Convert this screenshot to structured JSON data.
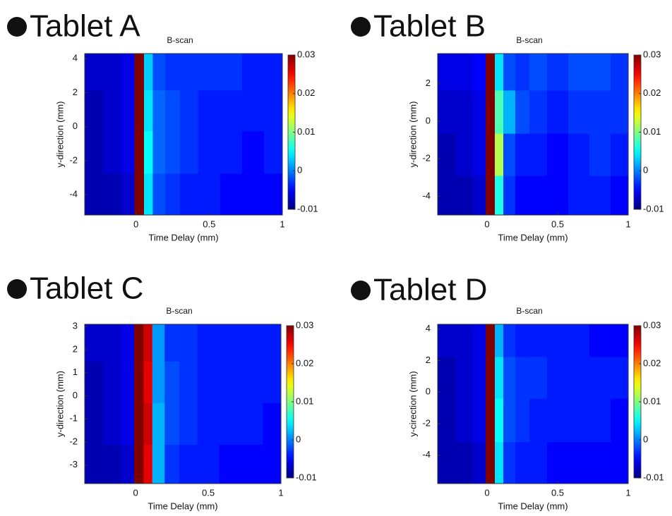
{
  "chart_data": [
    {
      "type": "heatmap",
      "label": "Tablet A",
      "title": "B-scan",
      "xlabel": "Time Delay (mm)",
      "ylabel": "y-direction (mm)",
      "xlim": [
        -0.35,
        1
      ],
      "xticks": [
        0,
        0.5,
        1
      ],
      "ylim": [
        -5.2,
        4.3
      ],
      "yticks": [
        -4,
        -2,
        0,
        2,
        4
      ],
      "x": [
        -0.3,
        -0.15,
        -0.05,
        0.03,
        0.08,
        0.15,
        0.25,
        0.35,
        0.5,
        0.65,
        0.8,
        0.95
      ],
      "y": [
        -4,
        -1.5,
        1,
        3.3
      ],
      "z": [
        [
          -0.008,
          -0.008,
          -0.007,
          0.03,
          0.004,
          -0.002,
          -0.003,
          -0.004,
          -0.004,
          -0.005,
          -0.005,
          -0.005
        ],
        [
          -0.008,
          -0.007,
          -0.006,
          0.03,
          0.005,
          -0.001,
          -0.002,
          -0.003,
          -0.004,
          -0.004,
          -0.005,
          -0.004
        ],
        [
          -0.008,
          -0.007,
          -0.006,
          0.03,
          0.004,
          -0.001,
          -0.002,
          -0.003,
          -0.004,
          -0.004,
          -0.004,
          -0.004
        ],
        [
          -0.007,
          -0.007,
          -0.006,
          0.03,
          0.003,
          -0.002,
          -0.003,
          -0.003,
          -0.003,
          -0.003,
          -0.004,
          -0.004
        ]
      ],
      "clim": [
        -0.01,
        0.03
      ],
      "cticks": [
        -0.01,
        0,
        0.01,
        0.02,
        0.03
      ],
      "colormap": "jet"
    },
    {
      "type": "heatmap",
      "label": "Tablet B",
      "title": "B-scan",
      "xlabel": "Time Delay (mm)",
      "ylabel": "y-direction (mm)",
      "xlim": [
        -0.35,
        1
      ],
      "xticks": [
        0,
        0.5,
        1
      ],
      "ylim": [
        -5,
        3.6
      ],
      "yticks": [
        -4,
        -2,
        0,
        2
      ],
      "x": [
        -0.3,
        -0.15,
        -0.05,
        0.03,
        0.08,
        0.15,
        0.25,
        0.35,
        0.5,
        0.65,
        0.8,
        0.95
      ],
      "y": [
        -4,
        -1.8,
        0.5,
        2.8
      ],
      "z": [
        [
          -0.008,
          -0.008,
          -0.007,
          0.03,
          0.006,
          -0.003,
          -0.005,
          -0.005,
          -0.005,
          -0.004,
          -0.004,
          -0.005
        ],
        [
          -0.008,
          -0.007,
          -0.006,
          0.03,
          0.012,
          -0.002,
          -0.004,
          -0.004,
          -0.005,
          -0.004,
          -0.003,
          -0.004
        ],
        [
          -0.007,
          -0.007,
          -0.006,
          0.03,
          0.008,
          0.002,
          -0.002,
          -0.003,
          -0.004,
          -0.003,
          -0.003,
          -0.003
        ],
        [
          -0.006,
          -0.006,
          -0.005,
          0.03,
          0.004,
          -0.002,
          -0.003,
          -0.002,
          -0.003,
          -0.002,
          -0.002,
          -0.003
        ]
      ],
      "clim": [
        -0.01,
        0.03
      ],
      "cticks": [
        -0.01,
        0,
        0.01,
        0.02,
        0.03
      ],
      "colormap": "jet"
    },
    {
      "type": "heatmap",
      "label": "Tablet C",
      "title": "B-scan",
      "xlabel": "Time Delay (mm)",
      "ylabel": "y-direction (mm)",
      "xlim": [
        -0.35,
        1
      ],
      "xticks": [
        0,
        0.5,
        1
      ],
      "ylim": [
        -3.8,
        3.1
      ],
      "yticks": [
        -3,
        -2,
        -1,
        0,
        1,
        2,
        3
      ],
      "x": [
        -0.3,
        -0.15,
        -0.05,
        0.03,
        0.08,
        0.15,
        0.25,
        0.35,
        0.5,
        0.65,
        0.8,
        0.95
      ],
      "y": [
        -3,
        -1.2,
        0.6,
        2.4
      ],
      "z": [
        [
          -0.008,
          -0.008,
          -0.007,
          0.03,
          0.026,
          0.002,
          -0.003,
          -0.004,
          -0.004,
          -0.005,
          -0.005,
          -0.005
        ],
        [
          -0.008,
          -0.007,
          -0.006,
          0.03,
          0.027,
          0.002,
          -0.002,
          -0.003,
          -0.004,
          -0.004,
          -0.004,
          -0.005
        ],
        [
          -0.008,
          -0.007,
          -0.006,
          0.03,
          0.026,
          0.001,
          -0.002,
          -0.003,
          -0.004,
          -0.004,
          -0.004,
          -0.004
        ],
        [
          -0.007,
          -0.007,
          -0.006,
          0.03,
          0.027,
          0.001,
          -0.003,
          -0.003,
          -0.004,
          -0.004,
          -0.004,
          -0.004
        ]
      ],
      "clim": [
        -0.01,
        0.03
      ],
      "cticks": [
        -0.01,
        0,
        0.01,
        0.02,
        0.03
      ],
      "colormap": "jet"
    },
    {
      "type": "heatmap",
      "label": "Tablet D",
      "title": "B-scan",
      "xlabel": "Time Delay (mm)",
      "ylabel": "y-cirection (mm)",
      "xlim": [
        -0.35,
        1
      ],
      "xticks": [
        0,
        0.5,
        1
      ],
      "ylim": [
        -5.8,
        4.3
      ],
      "yticks": [
        -4,
        -2,
        0,
        2,
        4
      ],
      "x": [
        -0.3,
        -0.15,
        -0.05,
        0.03,
        0.08,
        0.15,
        0.25,
        0.35,
        0.5,
        0.65,
        0.8,
        0.95
      ],
      "y": [
        -4.5,
        -1.8,
        1,
        3.5
      ],
      "z": [
        [
          -0.008,
          -0.008,
          -0.007,
          0.03,
          0.004,
          -0.003,
          -0.004,
          -0.004,
          -0.005,
          -0.005,
          -0.005,
          -0.005
        ],
        [
          -0.008,
          -0.007,
          -0.006,
          0.03,
          0.005,
          -0.002,
          -0.003,
          -0.004,
          -0.004,
          -0.004,
          -0.004,
          -0.005
        ],
        [
          -0.008,
          -0.007,
          -0.006,
          0.03,
          0.004,
          -0.002,
          -0.003,
          -0.003,
          -0.004,
          -0.004,
          -0.004,
          -0.004
        ],
        [
          -0.007,
          -0.007,
          -0.006,
          0.03,
          0.002,
          -0.003,
          -0.004,
          -0.004,
          -0.004,
          -0.004,
          -0.005,
          -0.005
        ]
      ],
      "clim": [
        -0.01,
        0.03
      ],
      "cticks": [
        -0.01,
        0,
        0.01,
        0.02,
        0.03
      ],
      "colormap": "jet"
    }
  ]
}
